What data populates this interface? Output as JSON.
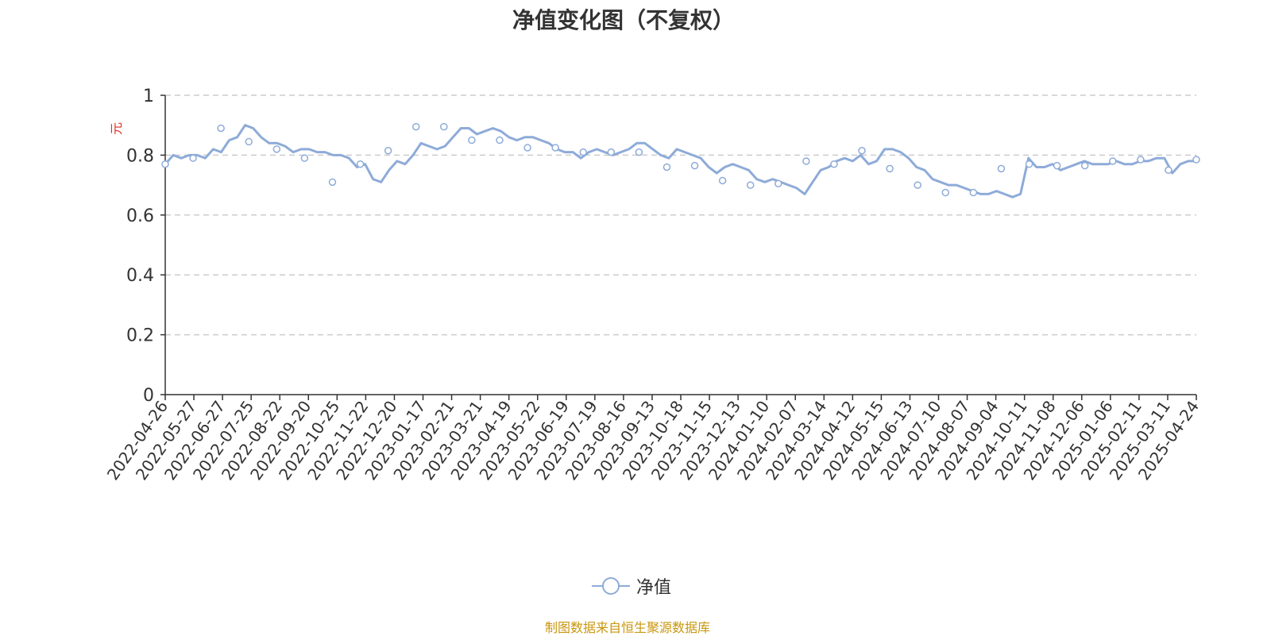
{
  "chart_data": {
    "type": "line",
    "title": "净值变化图（不复权）",
    "ylabel": "元",
    "xlabel": "",
    "ylim": [
      0,
      1
    ],
    "yticks": [
      0,
      0.2,
      0.4,
      0.6,
      0.8,
      1
    ],
    "grid": true,
    "legend_position": "bottom-center",
    "x_ticks": [
      "2022-04-26",
      "2022-05-27",
      "2022-06-27",
      "2022-07-25",
      "2022-08-22",
      "2022-09-20",
      "2022-10-25",
      "2022-11-22",
      "2022-12-20",
      "2023-01-17",
      "2023-02-21",
      "2023-03-21",
      "2023-04-19",
      "2023-05-22",
      "2023-06-19",
      "2023-07-19",
      "2023-08-16",
      "2023-09-13",
      "2023-10-18",
      "2023-11-15",
      "2023-12-13",
      "2024-01-10",
      "2024-02-07",
      "2024-03-14",
      "2024-04-12",
      "2024-05-15",
      "2024-06-13",
      "2024-07-10",
      "2024-08-07",
      "2024-09-04",
      "2024-10-11",
      "2024-11-08",
      "2024-12-06",
      "2025-01-06",
      "2025-02-11",
      "2025-03-11",
      "2025-04-24"
    ],
    "series": [
      {
        "name": "净值",
        "color": "#8eabd8",
        "values": [
          0.77,
          0.8,
          0.79,
          0.8,
          0.8,
          0.79,
          0.82,
          0.81,
          0.85,
          0.86,
          0.9,
          0.89,
          0.86,
          0.84,
          0.84,
          0.83,
          0.81,
          0.82,
          0.82,
          0.81,
          0.81,
          0.8,
          0.8,
          0.79,
          0.76,
          0.77,
          0.72,
          0.71,
          0.75,
          0.78,
          0.77,
          0.8,
          0.84,
          0.83,
          0.82,
          0.83,
          0.86,
          0.89,
          0.89,
          0.87,
          0.88,
          0.89,
          0.88,
          0.86,
          0.85,
          0.86,
          0.86,
          0.85,
          0.84,
          0.82,
          0.81,
          0.81,
          0.79,
          0.81,
          0.82,
          0.81,
          0.8,
          0.81,
          0.82,
          0.84,
          0.84,
          0.82,
          0.8,
          0.79,
          0.82,
          0.81,
          0.8,
          0.79,
          0.76,
          0.74,
          0.76,
          0.77,
          0.76,
          0.75,
          0.72,
          0.71,
          0.72,
          0.71,
          0.7,
          0.69,
          0.67,
          0.71,
          0.75,
          0.76,
          0.78,
          0.79,
          0.78,
          0.8,
          0.77,
          0.78,
          0.82,
          0.82,
          0.81,
          0.79,
          0.76,
          0.75,
          0.72,
          0.71,
          0.7,
          0.7,
          0.69,
          0.68,
          0.67,
          0.67,
          0.68,
          0.67,
          0.66,
          0.67,
          0.79,
          0.76,
          0.76,
          0.77,
          0.75,
          0.76,
          0.77,
          0.78,
          0.77,
          0.77,
          0.77,
          0.78,
          0.77,
          0.77,
          0.78,
          0.78,
          0.79,
          0.79,
          0.74,
          0.77,
          0.78,
          0.78
        ]
      }
    ],
    "marker_values": [
      0.77,
      0.79,
      0.89,
      0.845,
      0.82,
      0.79,
      0.71,
      0.77,
      0.815,
      0.895,
      0.895,
      0.85,
      0.85,
      0.825,
      0.825,
      0.81,
      0.81,
      0.81,
      0.76,
      0.765,
      0.715,
      0.7,
      0.705,
      0.78,
      0.77,
      0.815,
      0.755,
      0.7,
      0.675,
      0.675,
      0.755,
      0.77,
      0.765,
      0.765,
      0.78,
      0.785,
      0.75,
      0.785
    ]
  },
  "legend": {
    "label": "净值",
    "color": "#8eabd8"
  },
  "source_note": "制图数据来自恒生聚源数据库",
  "colors": {
    "axis": "#333333",
    "grid": "#cccccc",
    "ylabel": "#e0301e",
    "text": "#333333"
  }
}
